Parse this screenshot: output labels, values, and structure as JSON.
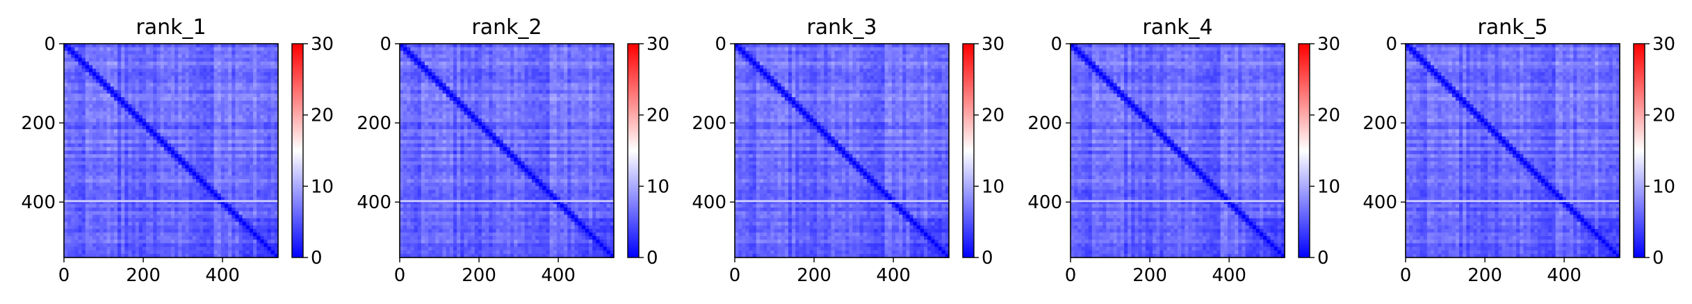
{
  "figure": {
    "background": "#ffffff"
  },
  "colormap": {
    "name": "bwr",
    "stops": [
      "#0000ff",
      "#ffffff",
      "#ff0000"
    ]
  },
  "chart_data": [
    {
      "type": "heatmap",
      "title": "rank_1",
      "x_range": [
        0,
        540
      ],
      "y_range": [
        0,
        540
      ],
      "x_ticks": [
        0,
        200,
        400
      ],
      "y_ticks": [
        0,
        200,
        400
      ],
      "colorbar": {
        "vmin": 0,
        "vmax": 30,
        "ticks": [
          0,
          10,
          20,
          30
        ]
      },
      "typical_value": 5,
      "bright_band_rows": [
        395,
        400
      ],
      "diagonal_value": 0
    },
    {
      "type": "heatmap",
      "title": "rank_2",
      "x_range": [
        0,
        540
      ],
      "y_range": [
        0,
        540
      ],
      "x_ticks": [
        0,
        200,
        400
      ],
      "y_ticks": [
        0,
        200,
        400
      ],
      "colorbar": {
        "vmin": 0,
        "vmax": 30,
        "ticks": [
          0,
          10,
          20,
          30
        ]
      },
      "typical_value": 5,
      "bright_band_rows": [
        395,
        400
      ],
      "diagonal_value": 0
    },
    {
      "type": "heatmap",
      "title": "rank_3",
      "x_range": [
        0,
        540
      ],
      "y_range": [
        0,
        540
      ],
      "x_ticks": [
        0,
        200,
        400
      ],
      "y_ticks": [
        0,
        200,
        400
      ],
      "colorbar": {
        "vmin": 0,
        "vmax": 30,
        "ticks": [
          0,
          10,
          20,
          30
        ]
      },
      "typical_value": 5,
      "bright_band_rows": [
        395,
        400
      ],
      "diagonal_value": 0
    },
    {
      "type": "heatmap",
      "title": "rank_4",
      "x_range": [
        0,
        540
      ],
      "y_range": [
        0,
        540
      ],
      "x_ticks": [
        0,
        200,
        400
      ],
      "y_ticks": [
        0,
        200,
        400
      ],
      "colorbar": {
        "vmin": 0,
        "vmax": 30,
        "ticks": [
          0,
          10,
          20,
          30
        ]
      },
      "typical_value": 5,
      "bright_band_rows": [
        395,
        400
      ],
      "diagonal_value": 0
    },
    {
      "type": "heatmap",
      "title": "rank_5",
      "x_range": [
        0,
        540
      ],
      "y_range": [
        0,
        540
      ],
      "x_ticks": [
        0,
        200,
        400
      ],
      "y_ticks": [
        0,
        200,
        400
      ],
      "colorbar": {
        "vmin": 0,
        "vmax": 30,
        "ticks": [
          0,
          10,
          20,
          30
        ]
      },
      "typical_value": 5,
      "bright_band_rows": [
        395,
        400
      ],
      "diagonal_value": 0
    }
  ]
}
